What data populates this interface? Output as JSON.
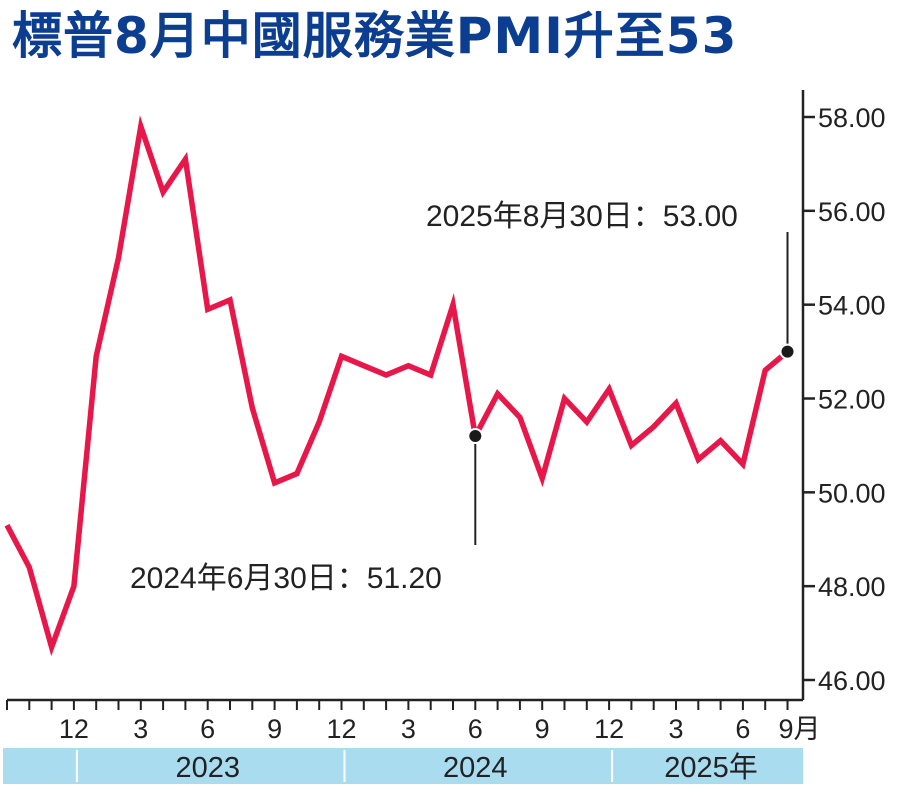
{
  "title": "標普8月中國服務業PMI升至53",
  "colors": {
    "title": "#0b3d91",
    "line": "#e8174a",
    "axis": "#222222",
    "year_band": "#a9dcef"
  },
  "chart_data": {
    "type": "line",
    "ylim": [
      46,
      58
    ],
    "y_ticks": [
      "58.00",
      "56.00",
      "54.00",
      "52.00",
      "50.00",
      "48.00",
      "46.00"
    ],
    "x_tick_labels": [
      "12",
      "3",
      "6",
      "9",
      "12",
      "3",
      "6",
      "9",
      "12",
      "3",
      "6",
      "9月"
    ],
    "year_labels": [
      "2023",
      "2024",
      "2025年"
    ],
    "x": [
      "2022-09",
      "2022-10",
      "2022-11",
      "2022-12",
      "2023-01",
      "2023-02",
      "2023-03",
      "2023-04",
      "2023-05",
      "2023-06",
      "2023-07",
      "2023-08",
      "2023-09",
      "2023-10",
      "2023-11",
      "2023-12",
      "2024-01",
      "2024-02",
      "2024-03",
      "2024-04",
      "2024-05",
      "2024-06",
      "2024-07",
      "2024-08",
      "2024-09",
      "2024-10",
      "2024-11",
      "2024-12",
      "2025-01",
      "2025-02",
      "2025-03",
      "2025-04",
      "2025-05",
      "2025-06",
      "2025-07",
      "2025-08"
    ],
    "values": [
      49.3,
      48.4,
      46.7,
      48.0,
      52.9,
      55.0,
      57.8,
      56.4,
      57.1,
      53.9,
      54.1,
      51.8,
      50.2,
      50.4,
      51.5,
      52.9,
      52.7,
      52.5,
      52.7,
      52.5,
      54.0,
      51.2,
      52.1,
      51.6,
      50.3,
      52.0,
      51.5,
      52.2,
      51.0,
      51.4,
      51.9,
      50.7,
      51.1,
      50.6,
      52.6,
      53.0
    ],
    "annotations": [
      {
        "label": "2024年6月30日：51.20",
        "x": "2024-06",
        "value": 51.2
      },
      {
        "label": "2025年8月30日：53.00",
        "x": "2025-08",
        "value": 53.0
      }
    ]
  }
}
